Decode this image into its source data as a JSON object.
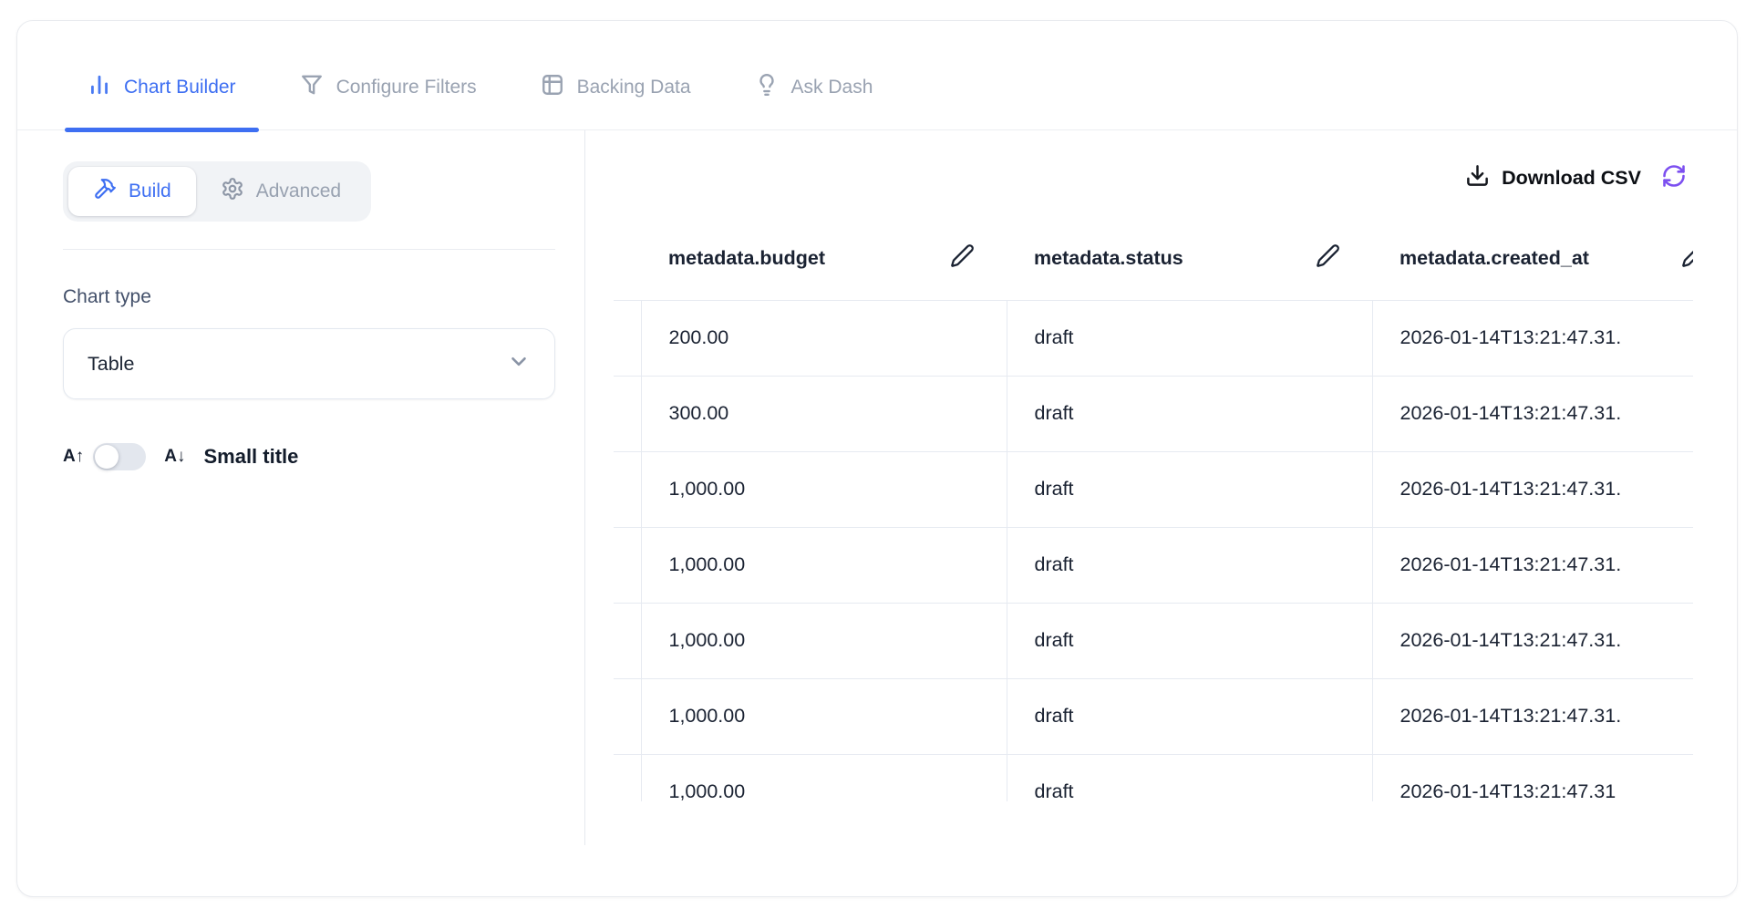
{
  "tabs": [
    {
      "label": "Chart Builder",
      "icon": "bar-chart-icon",
      "active": true
    },
    {
      "label": "Configure Filters",
      "icon": "funnel-icon",
      "active": false
    },
    {
      "label": "Backing Data",
      "icon": "table-icon",
      "active": false
    },
    {
      "label": "Ask Dash",
      "icon": "lightbulb-icon",
      "active": false
    }
  ],
  "left_panel": {
    "modes": {
      "build_label": "Build",
      "advanced_label": "Advanced",
      "active": "Build"
    },
    "chart_type": {
      "label": "Chart type",
      "selected_value": "Table"
    },
    "small_title": {
      "label": "Small title",
      "size_down_glyph": "A↑",
      "size_up_glyph": "A↓",
      "enabled": false
    }
  },
  "right_panel": {
    "download_csv_label": "Download CSV",
    "table": {
      "columns": [
        "metadata.budget",
        "metadata.status",
        "metadata.created_at"
      ],
      "rows": [
        [
          "200.00",
          "draft",
          "2026-01-14T13:21:47.31."
        ],
        [
          "300.00",
          "draft",
          "2026-01-14T13:21:47.31."
        ],
        [
          "1,000.00",
          "draft",
          "2026-01-14T13:21:47.31."
        ],
        [
          "1,000.00",
          "draft",
          "2026-01-14T13:21:47.31."
        ],
        [
          "1,000.00",
          "draft",
          "2026-01-14T13:21:47.31."
        ],
        [
          "1,000.00",
          "draft",
          "2026-01-14T13:21:47.31."
        ],
        [
          "1,000.00",
          "draft",
          "2026-01-14T13:21:47.31"
        ]
      ]
    }
  },
  "colors": {
    "accent_blue": "#3e6ff2",
    "accent_purple": "#7c4ff0",
    "text_dark": "#1a2232",
    "text_gray": "#99a2b1",
    "table_border": "#e6eaf1"
  }
}
